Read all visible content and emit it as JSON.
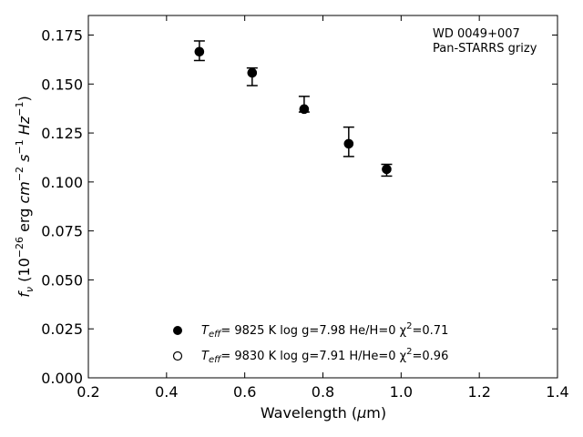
{
  "chart_data": {
    "type": "scatter",
    "xlabel": "Wavelength (μm)",
    "ylabel": "fν (10⁻²⁶ erg cm⁻² s⁻¹ Hz⁻¹)",
    "xlim": [
      0.2,
      1.4
    ],
    "ylim": [
      0.0,
      0.185
    ],
    "xticks": [
      "0.2",
      "0.4",
      "0.6",
      "0.8",
      "1.0",
      "1.2",
      "1.4"
    ],
    "xtick_values": [
      0.2,
      0.4,
      0.6,
      0.8,
      1.0,
      1.2,
      1.4
    ],
    "yticks": [
      "0.000",
      "0.025",
      "0.050",
      "0.075",
      "0.100",
      "0.125",
      "0.150",
      "0.175"
    ],
    "ytick_values": [
      0.0,
      0.025,
      0.05,
      0.075,
      0.1,
      0.125,
      0.15,
      0.175
    ],
    "grid": false,
    "annotations": [
      "WD 0049+007",
      "Pan-STARRS grizy"
    ],
    "series": [
      {
        "marker": "filled-circle",
        "x": [
          0.484,
          0.619,
          0.752,
          0.866,
          0.963
        ],
        "y": [
          0.1665,
          0.1557,
          0.1372,
          0.1195,
          0.1065
        ],
        "yerr_low": [
          0.0045,
          0.0065,
          0.0015,
          0.0065,
          0.0035
        ],
        "yerr_high": [
          0.0055,
          0.0025,
          0.0065,
          0.0085,
          0.0025
        ]
      },
      {
        "marker": "open-circle",
        "x": [
          0.484,
          0.619,
          0.752,
          0.866,
          0.963
        ],
        "y": [
          0.1665,
          0.1557,
          0.1372,
          0.1195,
          0.1065
        ]
      }
    ],
    "legend": {
      "placement": "lower-center",
      "entries": [
        {
          "marker": "filled-circle",
          "teff_label": "T",
          "teff_sub": "eff",
          "text": "= 9825 K  log g=7.98  He/H=0  χ",
          "chi_sup": "2",
          "chi_val": "=0.71"
        },
        {
          "marker": "open-circle",
          "teff_label": "T",
          "teff_sub": "eff",
          "text": "= 9830 K  log g=7.91  H/He=0  χ",
          "chi_sup": "2",
          "chi_val": "=0.96"
        }
      ]
    }
  }
}
